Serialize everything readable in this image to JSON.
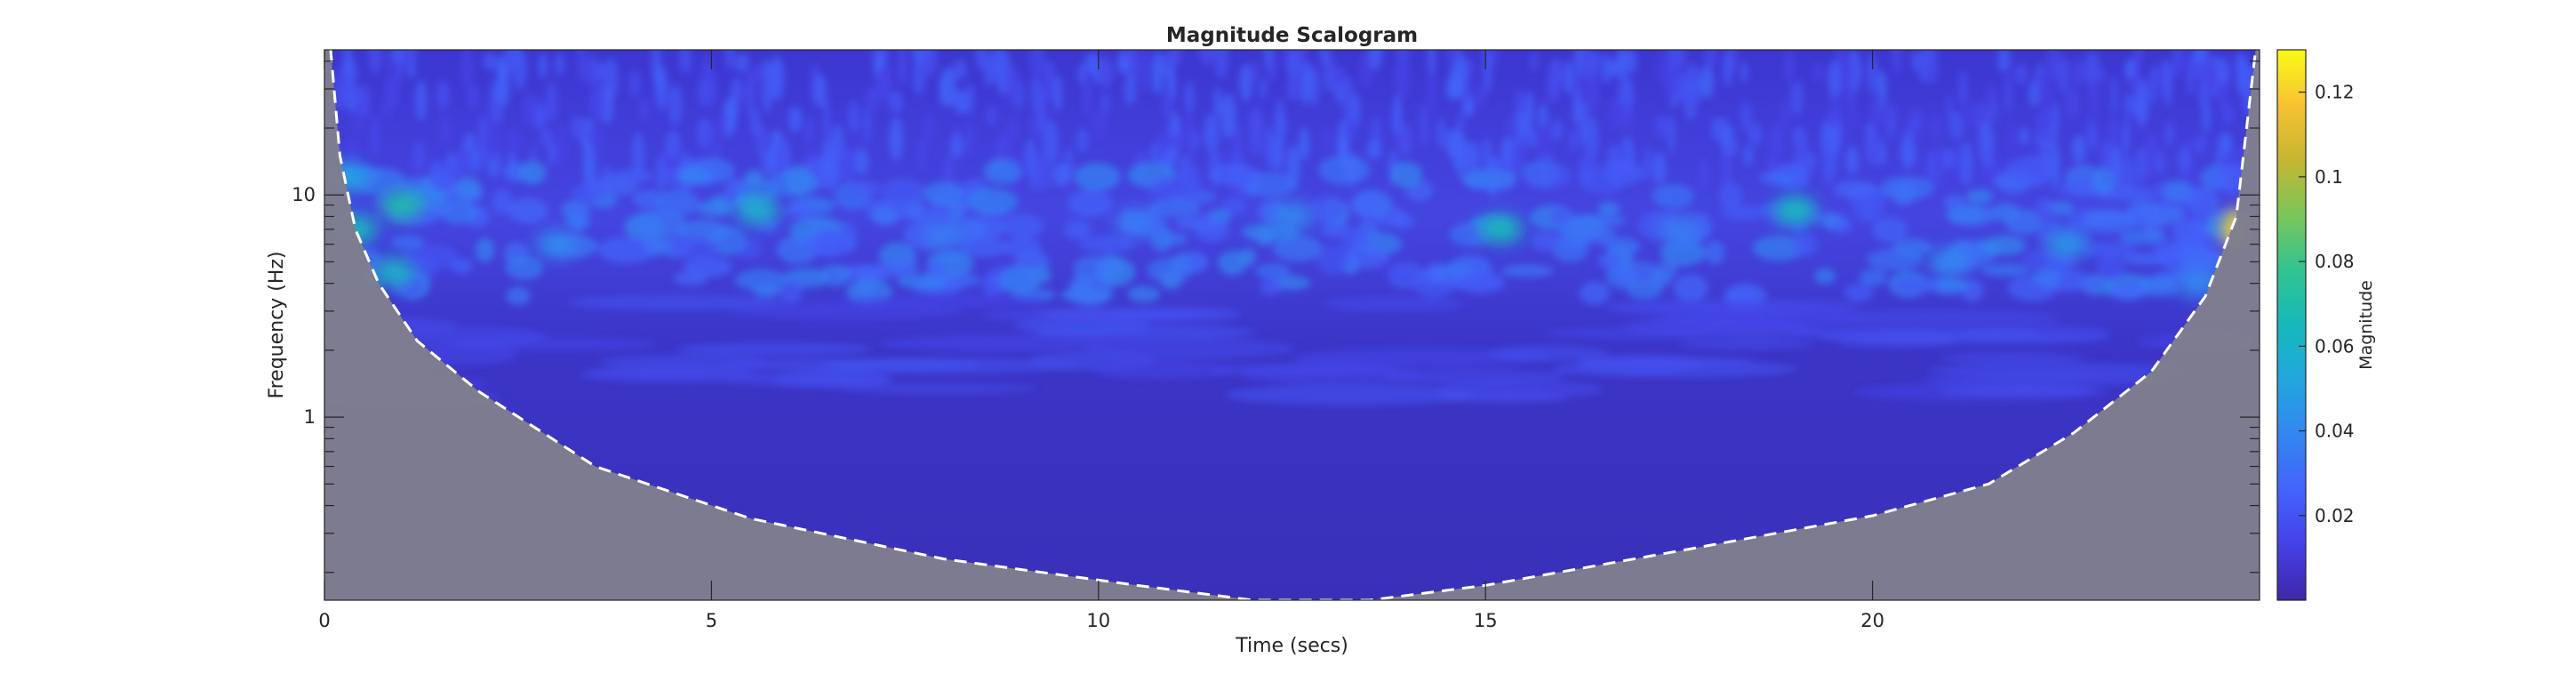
{
  "chart_data": {
    "type": "heatmap",
    "title": "Magnitude Scalogram",
    "xlabel": "Time (secs)",
    "ylabel": "Frequency (Hz)",
    "xlim": [
      0,
      25
    ],
    "ylim": [
      0.15,
      45
    ],
    "y_scale": "log",
    "x_ticks": [
      0,
      5,
      10,
      15,
      20
    ],
    "x_tick_labels": [
      "0",
      "5",
      "10",
      "15",
      "20"
    ],
    "y_ticks": [
      1,
      10
    ],
    "y_tick_labels": [
      "1",
      "10"
    ],
    "colorbar": {
      "label": "Magnitude",
      "range": [
        0,
        0.13
      ],
      "ticks": [
        0.02,
        0.04,
        0.06,
        0.08,
        0.1,
        0.12
      ],
      "tick_labels": [
        "0.02",
        "0.04",
        "0.06",
        "0.08",
        "0.1",
        "0.12"
      ]
    },
    "colormap": "parula",
    "cone_of_influence": {
      "style": "dashed",
      "line_color": "#ffffff",
      "shade_color": "#7f7e8e",
      "points": [
        {
          "t": 0.08,
          "f": 45
        },
        {
          "t": 0.2,
          "f": 15
        },
        {
          "t": 0.4,
          "f": 7
        },
        {
          "t": 0.7,
          "f": 4
        },
        {
          "t": 1.2,
          "f": 2.2
        },
        {
          "t": 2.0,
          "f": 1.3
        },
        {
          "t": 3.5,
          "f": 0.6
        },
        {
          "t": 5.5,
          "f": 0.35
        },
        {
          "t": 8.0,
          "f": 0.23
        },
        {
          "t": 10.5,
          "f": 0.175
        },
        {
          "t": 12.0,
          "f": 0.15
        },
        {
          "t": 13.5,
          "f": 0.15
        },
        {
          "t": 15.0,
          "f": 0.175
        },
        {
          "t": 17.5,
          "f": 0.25
        },
        {
          "t": 20.0,
          "f": 0.36
        },
        {
          "t": 21.5,
          "f": 0.5
        },
        {
          "t": 22.6,
          "f": 0.85
        },
        {
          "t": 23.6,
          "f": 1.6
        },
        {
          "t": 24.3,
          "f": 3.5
        },
        {
          "t": 24.7,
          "f": 8
        },
        {
          "t": 24.95,
          "f": 45
        }
      ]
    },
    "hotspots": [
      {
        "t": 24.7,
        "f": 7.0,
        "magnitude": 0.12
      },
      {
        "t": 1.0,
        "f": 9.0,
        "magnitude": 0.07
      },
      {
        "t": 0.4,
        "f": 7.0,
        "magnitude": 0.065
      },
      {
        "t": 0.9,
        "f": 4.5,
        "magnitude": 0.06
      },
      {
        "t": 0.3,
        "f": 12.0,
        "magnitude": 0.05
      },
      {
        "t": 5.6,
        "f": 8.5,
        "magnitude": 0.06
      },
      {
        "t": 15.2,
        "f": 7.0,
        "magnitude": 0.065
      },
      {
        "t": 19.0,
        "f": 8.5,
        "magnitude": 0.065
      },
      {
        "t": 22.5,
        "f": 6.0,
        "magnitude": 0.045
      },
      {
        "t": 3.0,
        "f": 6.0,
        "magnitude": 0.04
      },
      {
        "t": 10.5,
        "f": 7.5,
        "magnitude": 0.035
      },
      {
        "t": 12.5,
        "f": 8.0,
        "magnitude": 0.04
      },
      {
        "t": 17.5,
        "f": 7.0,
        "magnitude": 0.035
      },
      {
        "t": 21.0,
        "f": 5.0,
        "magnitude": 0.04
      },
      {
        "t": 8.0,
        "f": 6.5,
        "magnitude": 0.035
      },
      {
        "t": 24.2,
        "f": 4.0,
        "magnitude": 0.04
      }
    ]
  }
}
